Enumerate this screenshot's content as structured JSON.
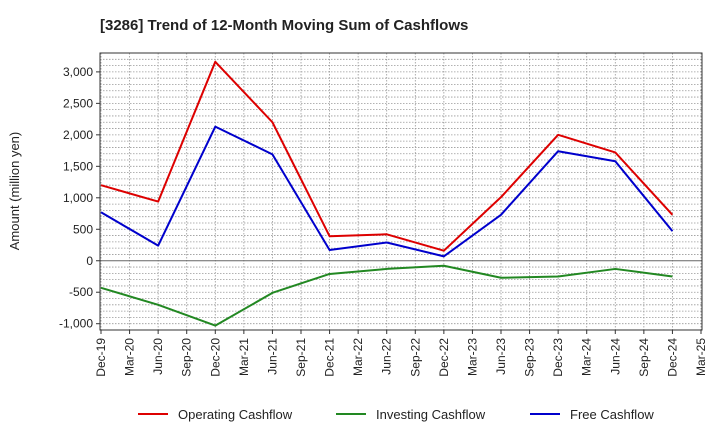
{
  "chart_data": {
    "type": "line",
    "title": "[3286]  Trend of 12-Month Moving Sum of Cashflows",
    "xlabel": "",
    "ylabel": "Amount (million yen)",
    "ylim": [
      -1100,
      3300
    ],
    "yticks": [
      -1000,
      -500,
      0,
      500,
      1000,
      1500,
      2000,
      2500,
      3000
    ],
    "ytick_labels": [
      "-1,000",
      "-500",
      "0",
      "500",
      "1,000",
      "1,500",
      "2,000",
      "2,500",
      "3,000"
    ],
    "x_labels": [
      "Dec-19",
      "Mar-20",
      "Jun-20",
      "Sep-20",
      "Dec-20",
      "Mar-21",
      "Jun-21",
      "Sep-21",
      "Dec-21",
      "Mar-22",
      "Jun-22",
      "Sep-22",
      "Dec-22",
      "Mar-23",
      "Jun-23",
      "Sep-23",
      "Dec-23",
      "Mar-24",
      "Jun-24",
      "Sep-24",
      "Dec-24",
      "Mar-25"
    ],
    "grid": true,
    "legend_position": "bottom",
    "series": [
      {
        "name": "Operating Cashflow",
        "color": "#dd0000",
        "x": [
          "Dec-19",
          "Jun-20",
          "Dec-20",
          "Jun-21",
          "Dec-21",
          "Jun-22",
          "Dec-22",
          "Jun-23",
          "Dec-23",
          "Jun-24",
          "Dec-24"
        ],
        "values": [
          1200,
          940,
          3160,
          2200,
          390,
          420,
          160,
          1010,
          2000,
          1720,
          730
        ]
      },
      {
        "name": "Investing Cashflow",
        "color": "#228822",
        "x": [
          "Dec-19",
          "Jun-20",
          "Dec-20",
          "Jun-21",
          "Dec-21",
          "Jun-22",
          "Dec-22",
          "Jun-23",
          "Dec-23",
          "Jun-24",
          "Dec-24"
        ],
        "values": [
          -430,
          -700,
          -1030,
          -510,
          -210,
          -130,
          -80,
          -270,
          -250,
          -130,
          -250
        ]
      },
      {
        "name": "Free Cashflow",
        "color": "#0000cc",
        "x": [
          "Dec-19",
          "Jun-20",
          "Dec-20",
          "Jun-21",
          "Dec-21",
          "Jun-22",
          "Dec-22",
          "Jun-23",
          "Dec-23",
          "Jun-24",
          "Dec-24"
        ],
        "values": [
          770,
          240,
          2130,
          1690,
          170,
          290,
          70,
          730,
          1740,
          1580,
          470
        ]
      }
    ]
  }
}
